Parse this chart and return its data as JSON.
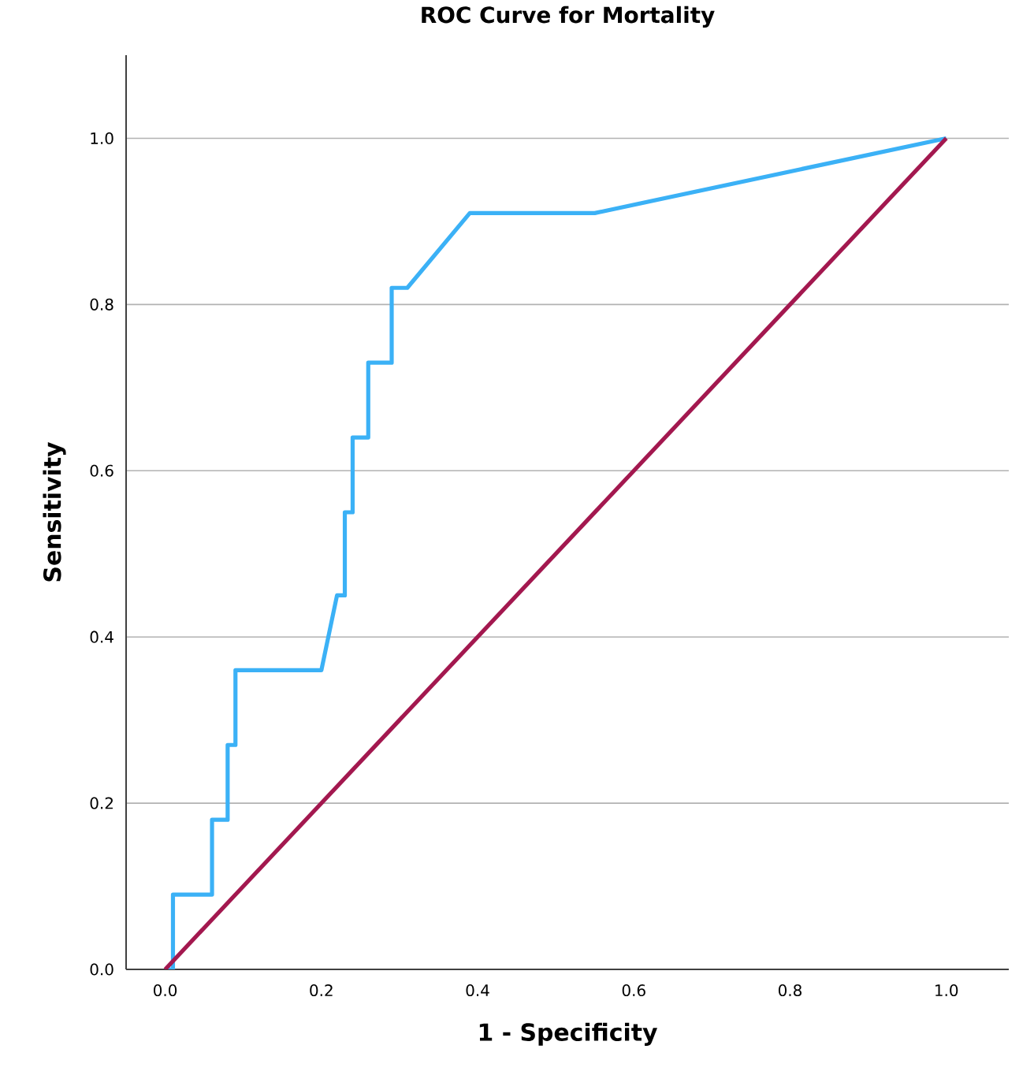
{
  "chart_data": {
    "type": "line",
    "title": "ROC Curve for Mortality",
    "xlabel": "1 - Specificity",
    "ylabel": "Sensitivity",
    "series": [
      {
        "color": "#3bb1f6",
        "x": [
          0,
          0.01,
          0.01,
          0.06,
          0.06,
          0.08,
          0.08,
          0.09,
          0.09,
          0.2,
          0.22,
          0.23,
          0.23,
          0.24,
          0.24,
          0.26,
          0.26,
          0.29,
          0.29,
          0.31,
          0.39,
          0.55,
          1
        ],
        "values": [
          0,
          0,
          0.09,
          0.09,
          0.18,
          0.18,
          0.27,
          0.27,
          0.36,
          0.36,
          0.45,
          0.45,
          0.55,
          0.55,
          0.64,
          0.64,
          0.73,
          0.73,
          0.82,
          0.82,
          0.91,
          0.91,
          1
        ]
      },
      {
        "color": "#a3184f",
        "x": [
          0,
          1
        ],
        "values": [
          0,
          1
        ]
      }
    ],
    "xlim": [
      -0.05,
      1.08
    ],
    "ylim": [
      0,
      1.1
    ],
    "xticks": [
      {
        "value": 0,
        "label": "0.0"
      },
      {
        "value": 0.2,
        "label": "0.2"
      },
      {
        "value": 0.4,
        "label": "0.4"
      },
      {
        "value": 0.6,
        "label": "0.6"
      },
      {
        "value": 0.8,
        "label": "0.8"
      },
      {
        "value": 1,
        "label": "1.0"
      }
    ],
    "yticks": [
      {
        "value": 0,
        "label": "0.0"
      },
      {
        "value": 0.2,
        "label": "0.2"
      },
      {
        "value": 0.4,
        "label": "0.4"
      },
      {
        "value": 0.6,
        "label": "0.6"
      },
      {
        "value": 0.8,
        "label": "0.8"
      },
      {
        "value": 1,
        "label": "1.0"
      }
    ],
    "grid": "y",
    "marker": "none",
    "line_style": "solid"
  }
}
